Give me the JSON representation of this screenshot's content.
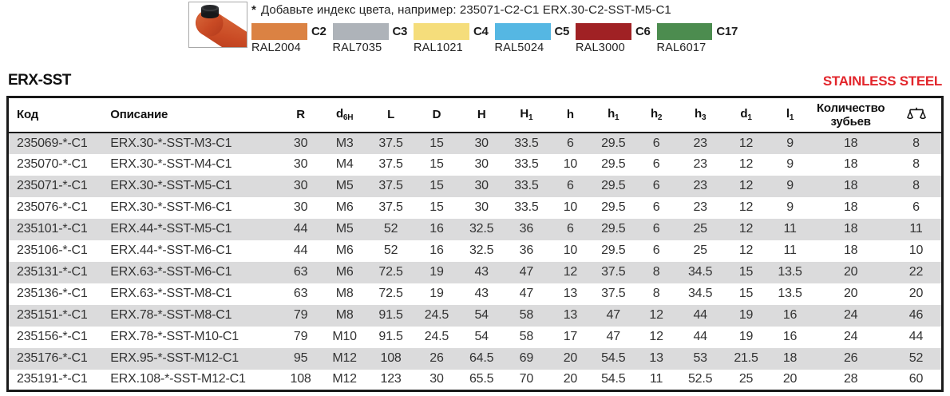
{
  "note": {
    "marker": "*",
    "text": "Добавьте индекс цвета, например: 235071-C2-C1 ERX.30-C2-SST-M5-C1"
  },
  "color_legend": [
    {
      "code": "C2",
      "ral": "RAL2004",
      "color": "#db8243"
    },
    {
      "code": "C3",
      "ral": "RAL7035",
      "color": "#aeb3b9"
    },
    {
      "code": "C4",
      "ral": "RAL1021",
      "color": "#f5dd7b"
    },
    {
      "code": "C5",
      "ral": "RAL5024",
      "color": "#55b7e3"
    },
    {
      "code": "C6",
      "ral": "RAL3000",
      "color": "#a02124"
    },
    {
      "code": "C17",
      "ral": "RAL6017",
      "color": "#4c8c4f"
    }
  ],
  "section": {
    "title": "ERX-SST",
    "badge": "STAINLESS STEEL",
    "badge_color": "#e2252b"
  },
  "icons": {
    "weight": "balance-scale-icon",
    "product": "lever-knob-photo"
  },
  "table": {
    "headers": [
      {
        "main": "Код"
      },
      {
        "main": "Описание"
      },
      {
        "main": "R"
      },
      {
        "main": "d",
        "sub": "6H"
      },
      {
        "main": "L"
      },
      {
        "main": "D"
      },
      {
        "main": "H"
      },
      {
        "main": "H",
        "sub": "1"
      },
      {
        "main": "h"
      },
      {
        "main": "h",
        "sub": "1"
      },
      {
        "main": "h",
        "sub": "2"
      },
      {
        "main": "h",
        "sub": "3"
      },
      {
        "main": "d",
        "sub": "1"
      },
      {
        "main": "l",
        "sub": "1"
      },
      {
        "main": "Количество зубьев"
      },
      {
        "main": "",
        "icon": "balance-scale-icon"
      }
    ],
    "rows": [
      [
        "235069-*-C1",
        "ERX.30-*-SST-M3-C1",
        "30",
        "M3",
        "37.5",
        "15",
        "30",
        "33.5",
        "6",
        "29.5",
        "6",
        "23",
        "12",
        "9",
        "18",
        "8"
      ],
      [
        "235070-*-C1",
        "ERX.30-*-SST-M4-C1",
        "30",
        "M4",
        "37.5",
        "15",
        "30",
        "33.5",
        "10",
        "29.5",
        "6",
        "23",
        "12",
        "9",
        "18",
        "8"
      ],
      [
        "235071-*-C1",
        "ERX.30-*-SST-M5-C1",
        "30",
        "M5",
        "37.5",
        "15",
        "30",
        "33.5",
        "6",
        "29.5",
        "6",
        "23",
        "12",
        "9",
        "18",
        "8"
      ],
      [
        "235076-*-C1",
        "ERX.30-*-SST-M6-C1",
        "30",
        "M6",
        "37.5",
        "15",
        "30",
        "33.5",
        "10",
        "29.5",
        "6",
        "23",
        "12",
        "9",
        "18",
        "6"
      ],
      [
        "235101-*-C1",
        "ERX.44-*-SST-M5-C1",
        "44",
        "M5",
        "52",
        "16",
        "32.5",
        "36",
        "6",
        "29.5",
        "6",
        "25",
        "12",
        "11",
        "18",
        "11"
      ],
      [
        "235106-*-C1",
        "ERX.44-*-SST-M6-C1",
        "44",
        "M6",
        "52",
        "16",
        "32.5",
        "36",
        "10",
        "29.5",
        "6",
        "25",
        "12",
        "11",
        "18",
        "10"
      ],
      [
        "235131-*-C1",
        "ERX.63-*-SST-M6-C1",
        "63",
        "M6",
        "72.5",
        "19",
        "43",
        "47",
        "12",
        "37.5",
        "8",
        "34.5",
        "15",
        "13.5",
        "20",
        "22"
      ],
      [
        "235136-*-C1",
        "ERX.63-*-SST-M8-C1",
        "63",
        "M8",
        "72.5",
        "19",
        "43",
        "47",
        "13",
        "37.5",
        "8",
        "34.5",
        "15",
        "13.5",
        "20",
        "20"
      ],
      [
        "235151-*-C1",
        "ERX.78-*-SST-M8-C1",
        "79",
        "M8",
        "91.5",
        "24.5",
        "54",
        "58",
        "13",
        "47",
        "12",
        "44",
        "19",
        "16",
        "24",
        "46"
      ],
      [
        "235156-*-C1",
        "ERX.78-*-SST-M10-C1",
        "79",
        "M10",
        "91.5",
        "24.5",
        "54",
        "58",
        "17",
        "47",
        "12",
        "44",
        "19",
        "16",
        "24",
        "44"
      ],
      [
        "235176-*-C1",
        "ERX.95-*-SST-M12-C1",
        "95",
        "M12",
        "108",
        "26",
        "64.5",
        "69",
        "20",
        "54.5",
        "13",
        "53",
        "21.5",
        "18",
        "26",
        "52"
      ],
      [
        "235191-*-C1",
        "ERX.108-*-SST-M12-C1",
        "108",
        "M12",
        "123",
        "30",
        "65.5",
        "70",
        "20",
        "54.5",
        "11",
        "52.5",
        "25",
        "20",
        "28",
        "60"
      ]
    ]
  }
}
